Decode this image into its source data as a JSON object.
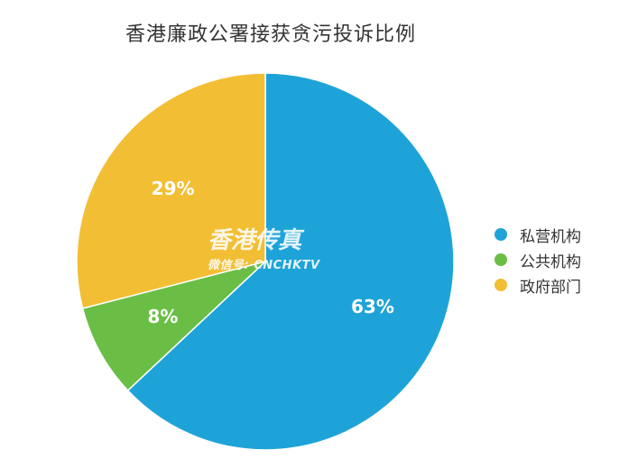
{
  "chart_data": {
    "type": "pie",
    "title": "香港廉政公署接获贪污投诉比例",
    "categories": [
      "私营机构",
      "公共机构",
      "政府部门"
    ],
    "values": [
      63,
      8,
      29
    ],
    "labels": [
      "63%",
      "8%",
      "29%"
    ],
    "colors": [
      "#1ea3d9",
      "#6abe45",
      "#f2be34"
    ],
    "legend_position": "right"
  },
  "watermark": {
    "main": "香港传真",
    "sub": "微信号: CNCHKTV"
  }
}
